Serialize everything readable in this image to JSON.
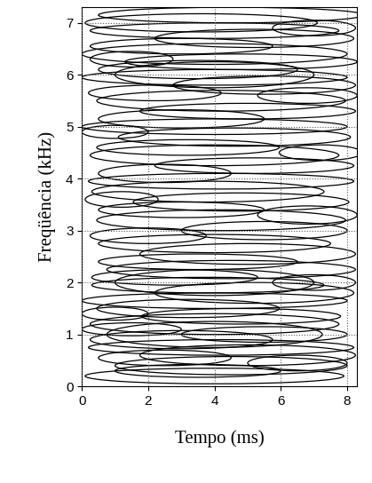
{
  "chart_data": {
    "type": "ellipse",
    "x_label": "Tempo (ms)",
    "y_label": "Freqüência (kHz)",
    "x": [
      4.0,
      3.5,
      4.5,
      2.5,
      5.0,
      4.2,
      3.0,
      5.5,
      1.5,
      4.0,
      4.8,
      3.2,
      4.0,
      5.2,
      3.8,
      2.8,
      4.5,
      3.5,
      5.0,
      4.0,
      2.0,
      5.5,
      4.2,
      3.0,
      4.8,
      3.8,
      4.2,
      2.5,
      5.2,
      4.0,
      3.2,
      4.6,
      4.0,
      3.0,
      5.0,
      4.2,
      2.2,
      5.5,
      4.0,
      3.5,
      4.8,
      4.0,
      3.0,
      5.2,
      4.0,
      3.6,
      4.5,
      6.5,
      1.0,
      7.0,
      6.8,
      1.2,
      7.2,
      1.0,
      6.8,
      1.5,
      7.0,
      4.0,
      4.0,
      4.0
    ],
    "y": [
      0.2,
      0.3,
      0.4,
      0.55,
      0.6,
      0.75,
      0.9,
      1.0,
      1.1,
      1.2,
      1.35,
      1.5,
      1.65,
      1.8,
      1.95,
      2.1,
      2.25,
      2.4,
      2.55,
      2.75,
      2.9,
      3.0,
      3.2,
      3.4,
      3.55,
      3.75,
      3.95,
      4.1,
      4.25,
      4.45,
      4.6,
      4.8,
      5.0,
      5.15,
      5.3,
      5.5,
      5.65,
      5.8,
      5.95,
      6.1,
      6.25,
      6.4,
      6.55,
      6.7,
      6.85,
      7.0,
      7.15,
      0.45,
      1.4,
      2.0,
      3.3,
      3.6,
      4.5,
      4.9,
      5.6,
      6.3,
      6.9,
      2.0,
      1.0,
      6.0
    ],
    "widths": [
      7.8,
      5.0,
      7.0,
      4.0,
      6.5,
      8.0,
      5.5,
      5.0,
      3.0,
      7.5,
      6.0,
      5.5,
      8.0,
      6.0,
      7.0,
      5.0,
      7.5,
      6.0,
      6.5,
      7.0,
      3.5,
      5.0,
      7.5,
      5.0,
      6.5,
      7.0,
      8.0,
      4.0,
      6.0,
      7.5,
      5.5,
      7.0,
      8.0,
      5.0,
      6.5,
      7.5,
      4.0,
      5.5,
      8.0,
      6.0,
      7.0,
      8.0,
      5.5,
      6.0,
      7.5,
      7.0,
      8.0,
      3.0,
      2.0,
      2.5,
      3.0,
      2.2,
      2.5,
      2.0,
      3.0,
      2.5,
      2.5,
      6.0,
      6.5,
      6.0
    ],
    "heights": [
      0.3,
      0.25,
      0.35,
      0.3,
      0.4,
      0.3,
      0.35,
      0.3,
      0.25,
      0.4,
      0.3,
      0.35,
      0.3,
      0.4,
      0.3,
      0.3,
      0.35,
      0.3,
      0.4,
      0.35,
      0.3,
      0.35,
      0.4,
      0.3,
      0.35,
      0.4,
      0.3,
      0.35,
      0.3,
      0.4,
      0.3,
      0.35,
      0.3,
      0.35,
      0.3,
      0.4,
      0.3,
      0.35,
      0.3,
      0.35,
      0.3,
      0.4,
      0.3,
      0.35,
      0.3,
      0.35,
      0.3,
      0.3,
      0.25,
      0.3,
      0.35,
      0.3,
      0.3,
      0.25,
      0.3,
      0.3,
      0.3,
      0.5,
      0.5,
      0.5
    ],
    "color": "#000000",
    "xlim": [
      0,
      8.3
    ],
    "ylim": [
      0,
      7.3
    ],
    "xticks": [
      0,
      2,
      4,
      6,
      8
    ],
    "yticks": [
      0,
      1,
      2,
      3,
      4,
      5,
      6,
      7
    ],
    "grid": true
  }
}
